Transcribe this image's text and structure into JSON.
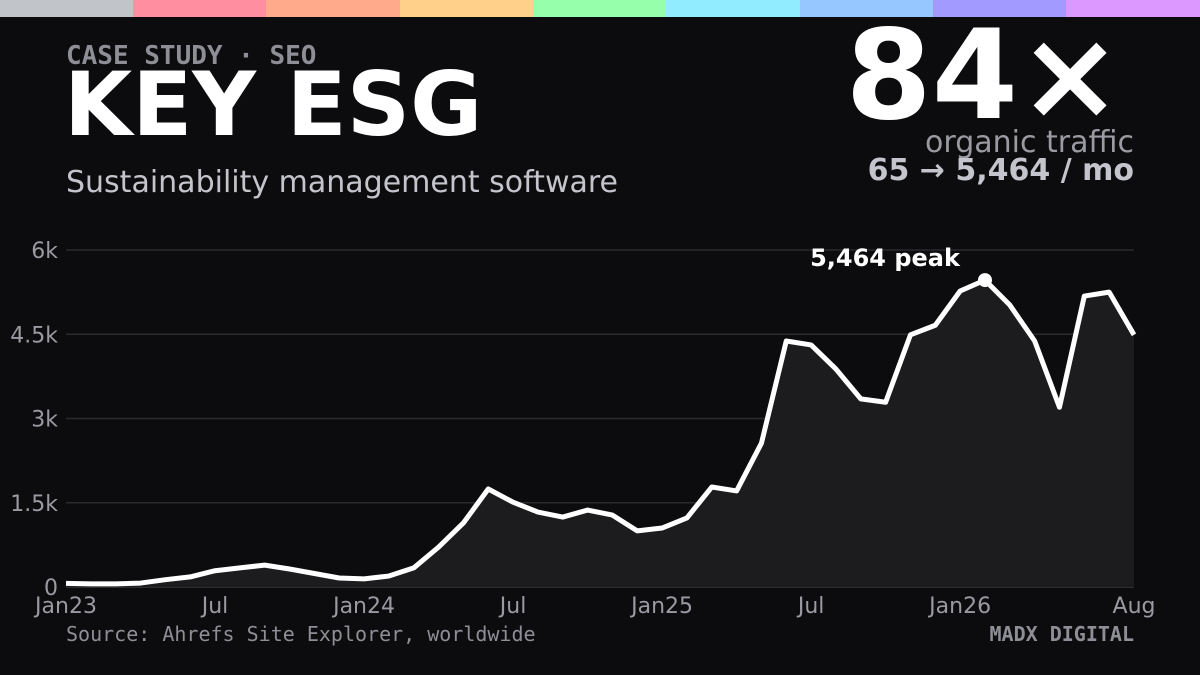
{
  "chart_data": {
    "type": "line",
    "eyebrow": "CASE STUDY · SEO",
    "title": "KEY ESG",
    "subtitle": "Sustainability management software",
    "headline": "84×",
    "headline_caption": "organic traffic",
    "headline_detail": "65 → 5,464 / mo",
    "annotation": "5,464 peak",
    "source": "Source: Ahrefs Site Explorer, worldwide",
    "brand": "MADX DIGITAL",
    "color": "#ffffff",
    "grid": true,
    "x": [
      "2023-01",
      "2023-02",
      "2023-03",
      "2023-04",
      "2023-05",
      "2023-06",
      "2023-07",
      "2023-08",
      "2023-09",
      "2023-10",
      "2023-11",
      "2023-12",
      "2024-01",
      "2024-02",
      "2024-03",
      "2024-04",
      "2024-05",
      "2024-06",
      "2024-07",
      "2024-08",
      "2024-09",
      "2024-10",
      "2024-11",
      "2024-12",
      "2025-01",
      "2025-02",
      "2025-03",
      "2025-04",
      "2025-05",
      "2025-06",
      "2025-07",
      "2025-08",
      "2025-09",
      "2025-10",
      "2025-11",
      "2025-12",
      "2026-01",
      "2026-02",
      "2026-03",
      "2026-04",
      "2026-05",
      "2026-06",
      "2026-07",
      "2026-08"
    ],
    "values": [
      65,
      55,
      55,
      70,
      130,
      180,
      290,
      340,
      390,
      320,
      240,
      160,
      145,
      195,
      340,
      710,
      1140,
      1745,
      1510,
      1335,
      1245,
      1370,
      1280,
      1000,
      1050,
      1230,
      1780,
      1710,
      2560,
      4380,
      4310,
      3880,
      3350,
      3290,
      4490,
      4660,
      5270,
      5464,
      5020,
      4380,
      3200,
      5180,
      5250,
      4490
    ],
    "xlim": [
      "2023-01",
      "2026-08"
    ],
    "xticks": [
      {
        "value": "2023-01",
        "label": "Jan23"
      },
      {
        "value": "2023-07",
        "label": "Jul"
      },
      {
        "value": "2024-01",
        "label": "Jan24"
      },
      {
        "value": "2024-07",
        "label": "Jul"
      },
      {
        "value": "2025-01",
        "label": "Jan25"
      },
      {
        "value": "2025-07",
        "label": "Jul"
      },
      {
        "value": "2026-01",
        "label": "Jan26"
      },
      {
        "value": "2026-08",
        "label": "Aug"
      }
    ],
    "ylim": [
      0,
      6000
    ],
    "yticks": [
      0,
      {
        "value": 1500,
        "label": "1.5k"
      },
      {
        "value": 3000,
        "label": "3k"
      },
      {
        "value": 4500,
        "label": "4.5k"
      },
      {
        "value": 6000,
        "label": "6k"
      }
    ]
  }
}
